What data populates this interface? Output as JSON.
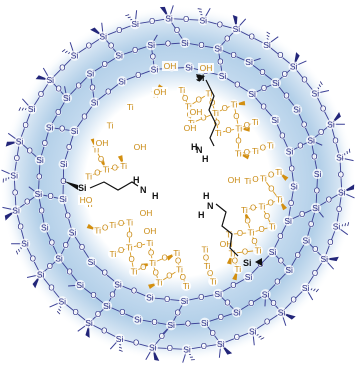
{
  "figure": {
    "colors": {
      "background": "#ffffff",
      "shell_glow": "#b8d3ea",
      "shell_glow_outer": "#dbe8f4",
      "silica": "#2b2f86",
      "silica_bond": "#3a3f95",
      "titania": "#d99a1f",
      "titania_text": "#c98a12",
      "linker": "#111111",
      "wedge": "#23267a",
      "ti_wedge": "#d38f10"
    },
    "labels": {
      "si": "Si",
      "o": "O",
      "ti": "Ti",
      "oh": "OH",
      "ho": "HO",
      "h": "H",
      "n": "N"
    },
    "linkers": [
      {
        "id": "top",
        "si": "Si",
        "n": "N",
        "h_top": "H",
        "h_bottom": "H"
      },
      {
        "id": "left",
        "si": "Si",
        "n": "N",
        "h_top": "H",
        "h_bottom": "H"
      },
      {
        "id": "right",
        "si": "Si",
        "n": "N",
        "h_top": "H",
        "h_bottom": "H"
      }
    ]
  }
}
